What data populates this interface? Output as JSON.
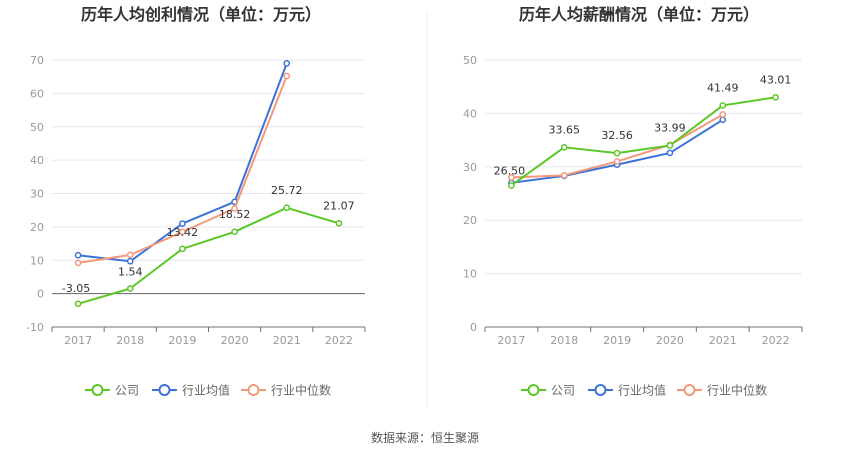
{
  "source_text": "数据来源：恒生聚源",
  "colors": {
    "company": "#5bc726",
    "industry_avg": "#3b73d8",
    "industry_median": "#f2997a"
  },
  "chart_data": [
    {
      "type": "line",
      "title": "历年人均创利情况（单位：万元）",
      "x": [
        "2017",
        "2018",
        "2019",
        "2020",
        "2021",
        "2022"
      ],
      "ylim": [
        -10,
        70
      ],
      "yticks": [
        -10,
        0,
        10,
        20,
        30,
        40,
        50,
        60,
        70
      ],
      "grid": true,
      "legend_position": "bottom",
      "series": [
        {
          "name": "公司",
          "values": [
            -3.05,
            1.54,
            13.42,
            18.52,
            25.72,
            21.07
          ],
          "labels": [
            "-3.05",
            "1.54",
            "13.42",
            "18.52",
            "25.72",
            "21.07"
          ]
        },
        {
          "name": "行业均值",
          "values": [
            11.5,
            9.7,
            21.0,
            27.5,
            69.0,
            null
          ]
        },
        {
          "name": "行业中位数",
          "values": [
            9.2,
            11.6,
            18.5,
            25.5,
            65.2,
            null
          ]
        }
      ]
    },
    {
      "type": "line",
      "title": "历年人均薪酬情况（单位：万元）",
      "x": [
        "2017",
        "2018",
        "2019",
        "2020",
        "2021",
        "2022"
      ],
      "ylim": [
        0,
        50
      ],
      "yticks": [
        0,
        10,
        20,
        30,
        40,
        50
      ],
      "grid": true,
      "legend_position": "bottom",
      "series": [
        {
          "name": "公司",
          "values": [
            26.5,
            33.65,
            32.56,
            33.99,
            41.49,
            43.01
          ],
          "labels": [
            "26.50",
            "33.65",
            "32.56",
            "33.99",
            "41.49",
            "43.01"
          ]
        },
        {
          "name": "行业均值",
          "values": [
            27.0,
            28.3,
            30.4,
            32.6,
            38.8,
            null
          ]
        },
        {
          "name": "行业中位数",
          "values": [
            28.0,
            28.4,
            31.0,
            34.1,
            39.8,
            null
          ]
        }
      ]
    }
  ]
}
